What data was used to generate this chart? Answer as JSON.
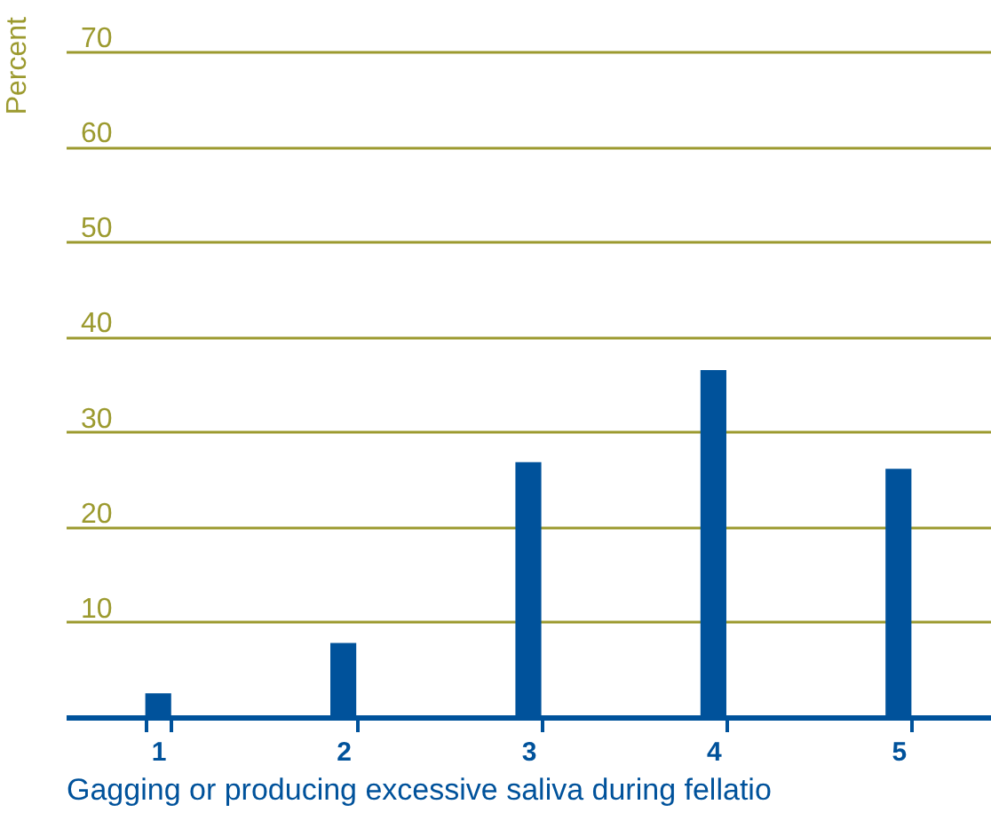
{
  "chart_data": {
    "type": "bar",
    "xlabel": "Gagging or producing excessive saliva during fellatio",
    "ylabel": "Percent",
    "categories": [
      "1",
      "2",
      "3",
      "4",
      "5"
    ],
    "values": [
      2.5,
      7.8,
      26.8,
      36.5,
      26.1
    ],
    "color": "#00529b",
    "ylim": [
      0,
      70
    ],
    "yticks": [
      10,
      20,
      30,
      40,
      50,
      60,
      70
    ],
    "grid": "y"
  }
}
